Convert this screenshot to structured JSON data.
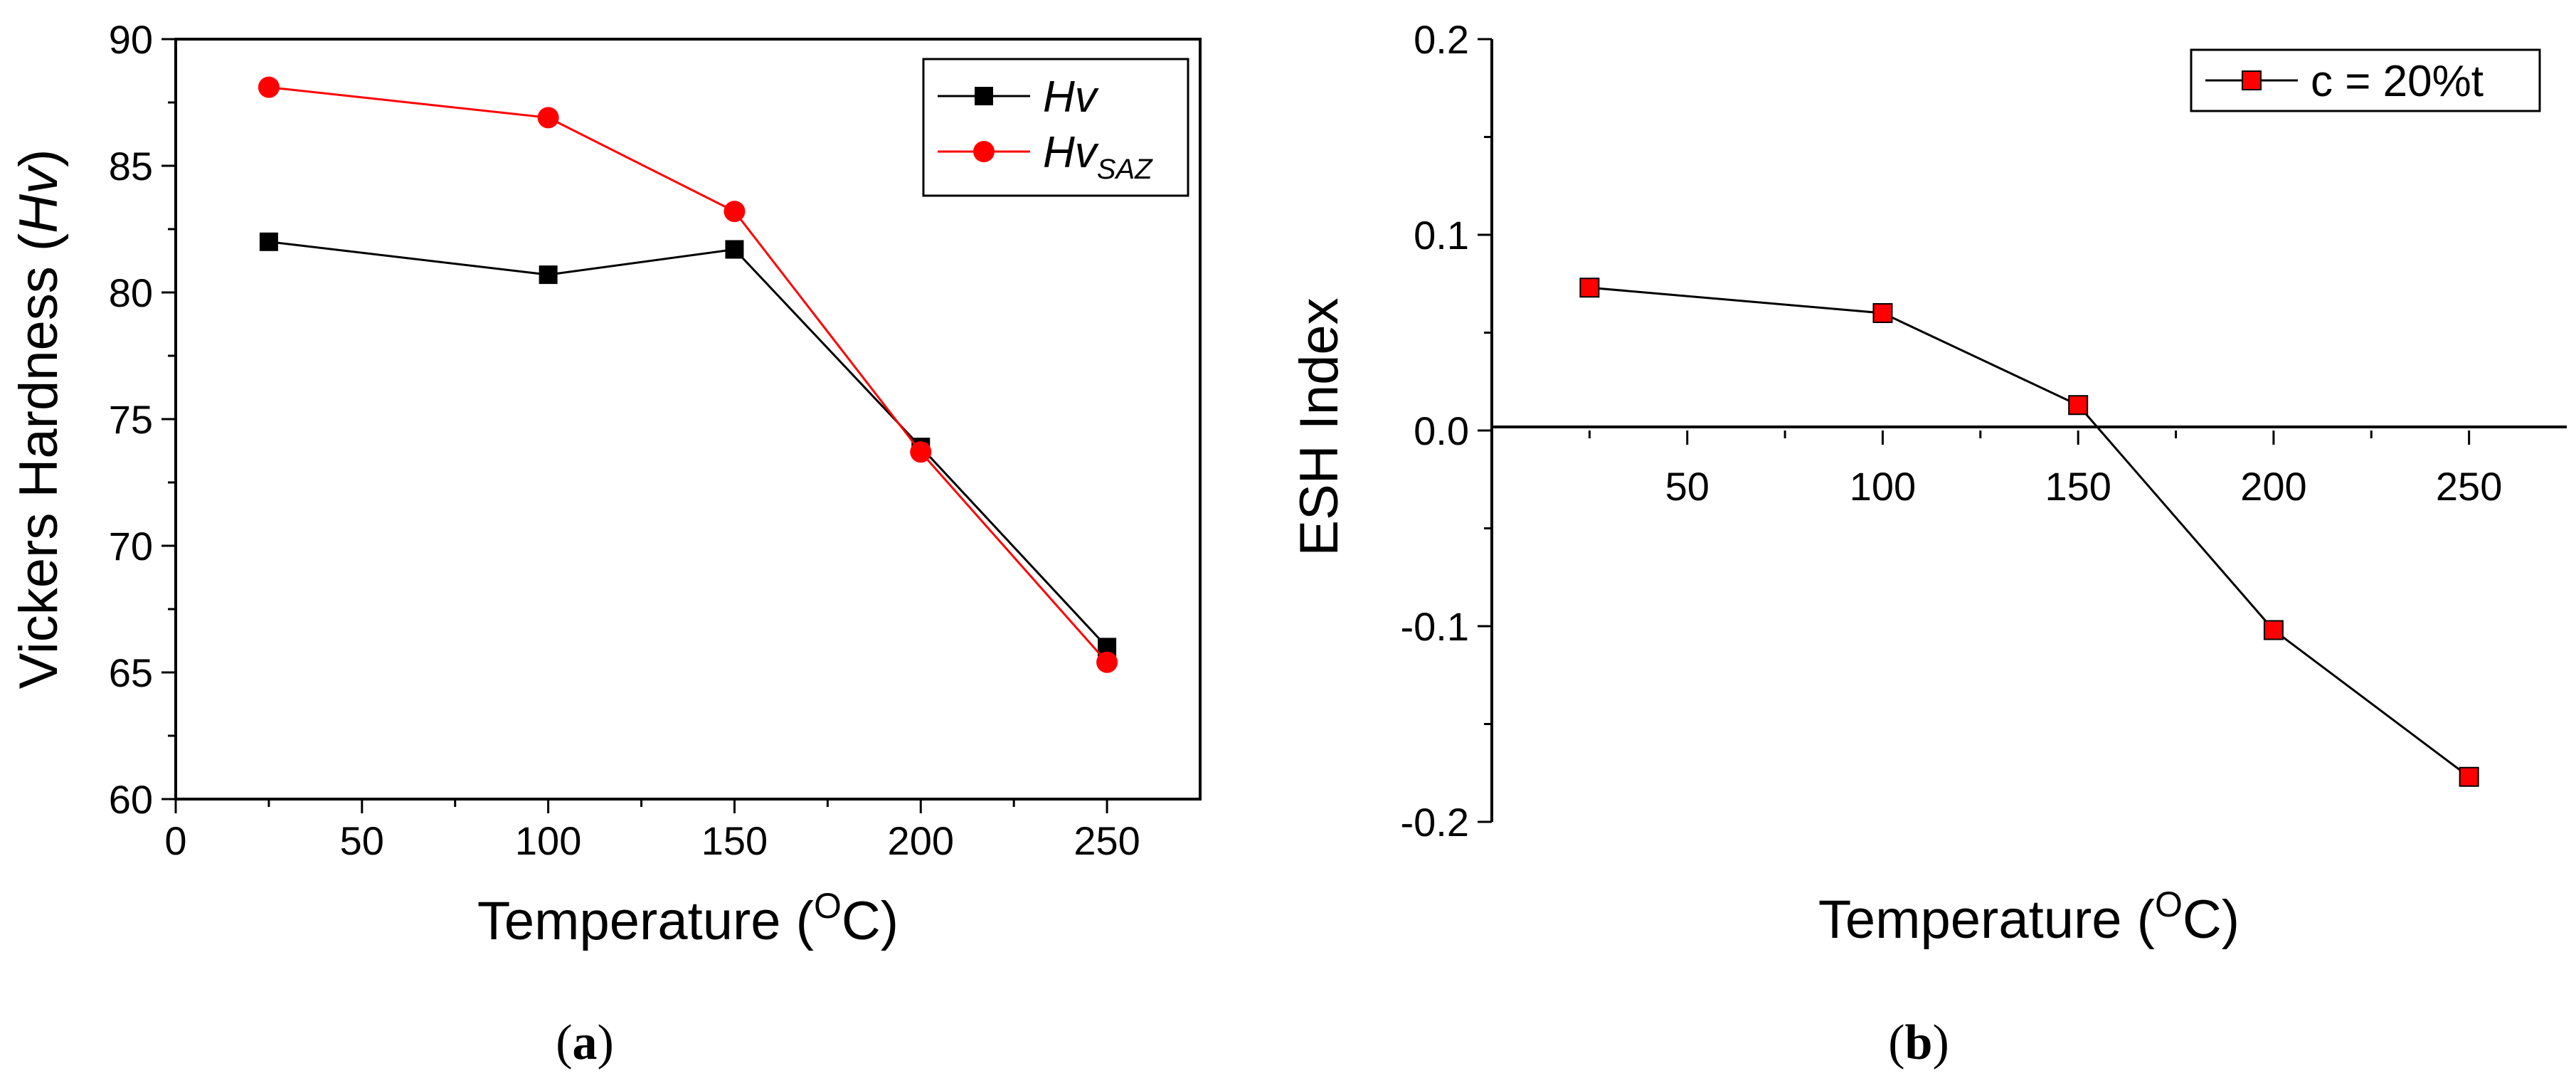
{
  "chart_data": [
    {
      "id": "a",
      "type": "line",
      "caption": {
        "open": "(",
        "letter": "a",
        "close": ")"
      },
      "xlabel": {
        "text": "Temperature (",
        "sup": "O",
        "tail": "C)"
      },
      "ylabel": {
        "text": "Vickers Hardness (",
        "italic": "Hv",
        "tail": ")"
      },
      "xlim": [
        0,
        275
      ],
      "ylim": [
        60,
        90
      ],
      "xticks": [
        0,
        50,
        100,
        150,
        200,
        250
      ],
      "yticks": [
        60,
        65,
        70,
        75,
        80,
        85,
        90
      ],
      "series": [
        {
          "name": "Hv",
          "legend_main": "Hv",
          "legend_sub": "",
          "color": "#000000",
          "marker": "square",
          "x": [
            25,
            100,
            150,
            200,
            250
          ],
          "values": [
            82.0,
            80.7,
            81.7,
            73.9,
            66.0
          ]
        },
        {
          "name": "HvSAZ",
          "legend_main": "Hv",
          "legend_sub": "SAZ",
          "color": "#ff0000",
          "marker": "circle",
          "x": [
            25,
            100,
            150,
            200,
            250
          ],
          "values": [
            88.1,
            86.9,
            83.2,
            73.7,
            65.4
          ]
        }
      ],
      "legend_position": "top-right"
    },
    {
      "id": "b",
      "type": "line",
      "caption": {
        "open": "(",
        "letter": "b",
        "close": ")"
      },
      "xlabel": {
        "text": "Temperature (",
        "sup": "O",
        "tail": "C)"
      },
      "ylabel": {
        "text": "ESH Index",
        "italic": "",
        "tail": ""
      },
      "xlim": [
        0,
        275
      ],
      "ylim": [
        -0.2,
        0.2
      ],
      "xticks": [
        50,
        100,
        150,
        200,
        250
      ],
      "yticks": [
        -0.2,
        -0.1,
        0.0,
        0.1,
        0.2
      ],
      "ytick_labels": [
        "-0.2",
        "-0.1",
        "0.0",
        "0.1",
        "0.2"
      ],
      "series": [
        {
          "name": "c = 20%t",
          "legend_main": "c = 20%t",
          "legend_sub": "",
          "color": "#000000",
          "marker_fill": "#ff0000",
          "marker": "square",
          "x": [
            25,
            100,
            150,
            200,
            250
          ],
          "values": [
            0.073,
            0.06,
            0.013,
            -0.102,
            -0.177
          ]
        }
      ],
      "legend_position": "top-right"
    }
  ]
}
